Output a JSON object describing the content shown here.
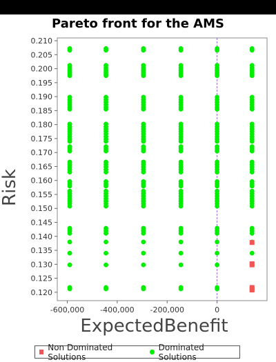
{
  "chart_data": {
    "type": "scatter",
    "title": "Pareto front for the AMS",
    "xlabel": "ExpectedBenefit",
    "ylabel": "Risk",
    "xlim": [
      -640000,
      200000
    ],
    "ylim": [
      0.117,
      0.211
    ],
    "x_ticks": [
      -600000,
      -400000,
      -200000,
      0
    ],
    "x_tick_labels": [
      "-600,000",
      "-400,000",
      "-200,000",
      "0"
    ],
    "y_ticks": [
      0.12,
      0.125,
      0.13,
      0.135,
      0.14,
      0.145,
      0.15,
      0.155,
      0.16,
      0.165,
      0.17,
      0.175,
      0.18,
      0.185,
      0.19,
      0.195,
      0.2,
      0.205,
      0.21
    ],
    "y_tick_labels": [
      "0.120",
      "0.125",
      "0.130",
      "0.135",
      "0.140",
      "0.145",
      "0.150",
      "0.155",
      "0.160",
      "0.165",
      "0.170",
      "0.175",
      "0.180",
      "0.185",
      "0.190",
      "0.195",
      "0.200",
      "0.205",
      "0.210"
    ],
    "zero_line_x": 0,
    "grid": false,
    "legend_position": "bottom",
    "series": [
      {
        "name": "Non Dominated Solutions",
        "marker": "square",
        "color": "#f25555",
        "points": [
          [
            140000,
            0.1378
          ],
          [
            140000,
            0.1302
          ],
          [
            140000,
            0.1298
          ],
          [
            140000,
            0.1217
          ],
          [
            140000,
            0.1212
          ],
          [
            140000,
            0.1208
          ]
        ]
      },
      {
        "name": "Dominated Solutions",
        "marker": "circle",
        "color": "#00ee00",
        "columns_x": [
          -590000,
          -445000,
          -295000,
          -145000,
          0,
          140000
        ],
        "column_y": [
          0.2072,
          0.2066,
          0.2012,
          0.2003,
          0.1995,
          0.1988,
          0.1981,
          0.1975,
          0.1898,
          0.1889,
          0.188,
          0.1871,
          0.1862,
          0.1855,
          0.1802,
          0.1793,
          0.1784,
          0.1775,
          0.1766,
          0.1757,
          0.1748,
          0.174,
          0.1721,
          0.1713,
          0.1705,
          0.1666,
          0.1657,
          0.1648,
          0.1639,
          0.163,
          0.1596,
          0.1588,
          0.158,
          0.1562,
          0.1553,
          0.1544,
          0.1535,
          0.1526,
          0.1517,
          0.1508,
          0.1429,
          0.142,
          0.1411,
          0.138,
          0.134,
          0.1298,
          0.1217,
          0.1212
        ]
      }
    ]
  }
}
